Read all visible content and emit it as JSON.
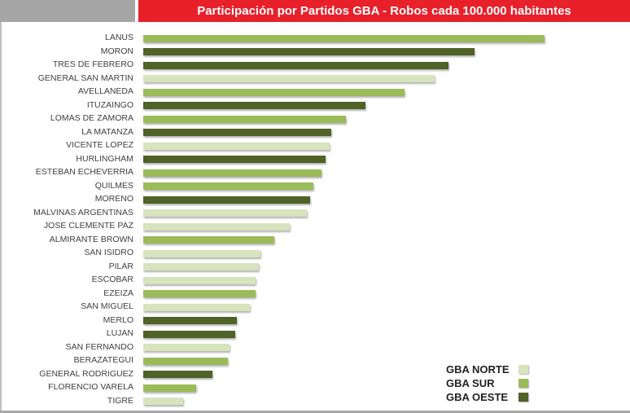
{
  "chart_data": {
    "type": "bar",
    "orientation": "horizontal",
    "title": "Participación por Partidos GBA - Robos cada 100.000 habitantes",
    "xlabel": "",
    "ylabel": "",
    "xlim": [
      0,
      500
    ],
    "grid": false,
    "legend_position": "bottom-right",
    "legend": [
      {
        "key": "norte",
        "label": "GBA NORTE",
        "color": "#d7e4bd"
      },
      {
        "key": "sur",
        "label": "GBA SUR",
        "color": "#9bbb59"
      },
      {
        "key": "oeste",
        "label": "GBA OESTE",
        "color": "#4f6228"
      }
    ],
    "categories": [
      "LANUS",
      "MORON",
      "TRES DE FEBRERO",
      "GENERAL SAN MARTIN",
      "AVELLANEDA",
      "ITUZAINGO",
      "LOMAS DE ZAMORA",
      "LA MATANZA",
      "VICENTE LOPEZ",
      "HURLINGHAM",
      "ESTEBAN ECHEVERRIA",
      "QUILMES",
      "MORENO",
      "MALVINAS ARGENTINAS",
      "JOSE CLEMENTE PAZ",
      "ALMIRANTE BROWN",
      "SAN ISIDRO",
      "PILAR",
      "ESCOBAR",
      "EZEIZA",
      "SAN MIGUEL",
      "MERLO",
      "LUJAN",
      "SAN FERNANDO",
      "BERAZATEGUI",
      "GENERAL RODRIGUEZ",
      "FLORENCIO VARELA",
      "TIGRE"
    ],
    "values": [
      493,
      407,
      375,
      358,
      321,
      273,
      249,
      231,
      229,
      224,
      219,
      209,
      205,
      201,
      180,
      161,
      144,
      142,
      138,
      138,
      131,
      115,
      113,
      106,
      104,
      85,
      65,
      49
    ],
    "groups": [
      "sur",
      "oeste",
      "oeste",
      "norte",
      "sur",
      "oeste",
      "sur",
      "oeste",
      "norte",
      "oeste",
      "sur",
      "sur",
      "oeste",
      "norte",
      "norte",
      "sur",
      "norte",
      "norte",
      "norte",
      "sur",
      "norte",
      "oeste",
      "oeste",
      "norte",
      "sur",
      "oeste",
      "sur",
      "norte"
    ]
  }
}
